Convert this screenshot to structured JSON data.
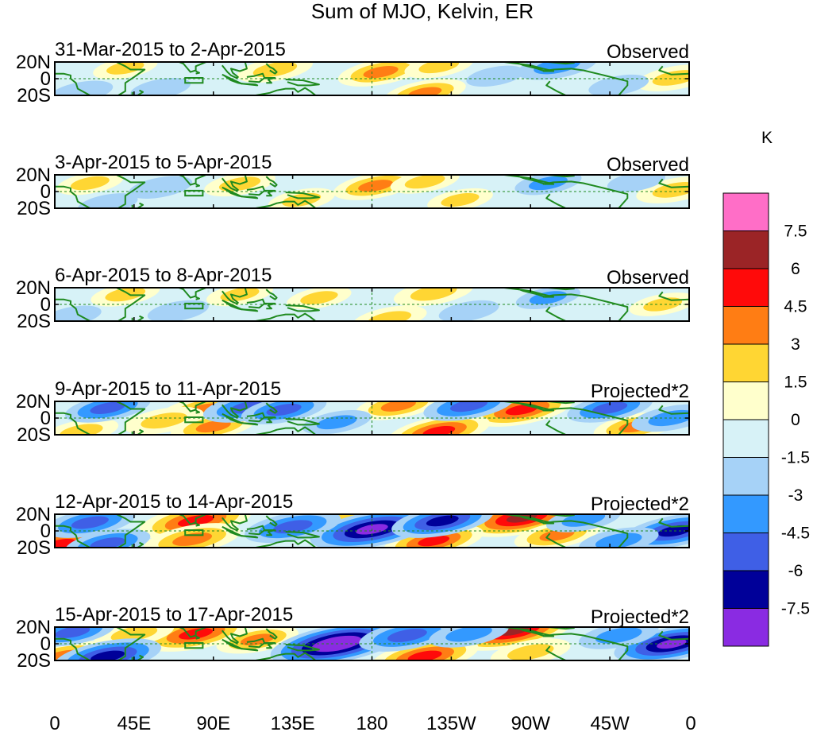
{
  "chart_data": {
    "type": "heatmap",
    "title": "Sum of MJO, Kelvin, ER",
    "units": "K",
    "lon_ticks": [
      "0",
      "45E",
      "90E",
      "135E",
      "180",
      "135W",
      "90W",
      "45W",
      "0"
    ],
    "lat_ticks": [
      "20N",
      "0",
      "20S"
    ],
    "lon_range": [
      0,
      360
    ],
    "lat_range": [
      -20,
      20
    ],
    "colorbar": {
      "label": "K",
      "levels": [
        "7.5",
        "6",
        "4.5",
        "3",
        "1.5",
        "0",
        "-1.5",
        "-3",
        "-4.5",
        "-6",
        "-7.5"
      ],
      "colors": [
        "#ff6ec7",
        "#9b2426",
        "#ff0a0a",
        "#ff7d14",
        "#ffd633",
        "#ffffcc",
        "#d7f2f7",
        "#a6d2f7",
        "#3399ff",
        "#3f5fe6",
        "#000099",
        "#8a2be2"
      ]
    },
    "panels": [
      {
        "period": "31-Mar-2015 to 2-Apr-2015",
        "kind": "Observed",
        "anomalies": [
          {
            "lon": 185,
            "lat": 8,
            "value": 3.5
          },
          {
            "lon": 210,
            "lat": -17,
            "value": 3.2
          },
          {
            "lon": 125,
            "lat": 11,
            "value": 2.6
          },
          {
            "lon": 352,
            "lat": 1,
            "value": 2.8
          },
          {
            "lon": 218,
            "lat": 15,
            "value": 2.0
          },
          {
            "lon": 285,
            "lat": 15,
            "value": -3.0
          },
          {
            "lon": 60,
            "lat": -12,
            "value": -1.2
          },
          {
            "lon": 15,
            "lat": -16,
            "value": -1.5
          },
          {
            "lon": 320,
            "lat": -8,
            "value": -1.2
          },
          {
            "lon": 40,
            "lat": 13,
            "value": 1.6
          },
          {
            "lon": 250,
            "lat": 3,
            "value": -1.0
          }
        ]
      },
      {
        "period": "3-Apr-2015 to 5-Apr-2015",
        "kind": "Observed",
        "anomalies": [
          {
            "lon": 182,
            "lat": 7,
            "value": 3.4
          },
          {
            "lon": 140,
            "lat": -10,
            "value": 1.8
          },
          {
            "lon": 352,
            "lat": 2,
            "value": 2.8
          },
          {
            "lon": 210,
            "lat": 12,
            "value": 2.0
          },
          {
            "lon": 105,
            "lat": 9,
            "value": 2.2
          },
          {
            "lon": 230,
            "lat": -10,
            "value": 1.7
          },
          {
            "lon": 20,
            "lat": 10,
            "value": 1.8
          },
          {
            "lon": 280,
            "lat": 10,
            "value": -1.8
          },
          {
            "lon": 60,
            "lat": 5,
            "value": -1.5
          },
          {
            "lon": 30,
            "lat": -15,
            "value": -1.2
          },
          {
            "lon": 330,
            "lat": 12,
            "value": -1.0
          }
        ]
      },
      {
        "period": "6-Apr-2015 to 8-Apr-2015",
        "kind": "Observed",
        "anomalies": [
          {
            "lon": 215,
            "lat": 14,
            "value": 3.0
          },
          {
            "lon": 190,
            "lat": -17,
            "value": 2.5
          },
          {
            "lon": 40,
            "lat": 12,
            "value": 2.0
          },
          {
            "lon": 345,
            "lat": 0,
            "value": 1.8
          },
          {
            "lon": 105,
            "lat": 12,
            "value": 1.8
          },
          {
            "lon": 150,
            "lat": 8,
            "value": 1.6
          },
          {
            "lon": 280,
            "lat": 8,
            "value": -1.6
          },
          {
            "lon": 70,
            "lat": -8,
            "value": -1.3
          },
          {
            "lon": 235,
            "lat": -8,
            "value": -1.2
          },
          {
            "lon": 10,
            "lat": -14,
            "value": -1.0
          }
        ]
      },
      {
        "period": "9-Apr-2015 to 11-Apr-2015",
        "kind": "Projected*2",
        "anomalies": [
          {
            "lon": 265,
            "lat": 10,
            "value": 5.0
          },
          {
            "lon": 218,
            "lat": -16,
            "value": 5.0
          },
          {
            "lon": 85,
            "lat": 10,
            "value": 4.0
          },
          {
            "lon": 62,
            "lat": -3,
            "value": 3.0
          },
          {
            "lon": 90,
            "lat": -10,
            "value": 3.5
          },
          {
            "lon": 195,
            "lat": 15,
            "value": 3.5
          },
          {
            "lon": 330,
            "lat": -10,
            "value": 3.5
          },
          {
            "lon": 15,
            "lat": -16,
            "value": 2.5
          },
          {
            "lon": 110,
            "lat": 13,
            "value": -4.0
          },
          {
            "lon": 130,
            "lat": 10,
            "value": -3.5
          },
          {
            "lon": 235,
            "lat": 15,
            "value": -4.0
          },
          {
            "lon": 30,
            "lat": 12,
            "value": -3.5
          },
          {
            "lon": 315,
            "lat": 12,
            "value": -3.5
          },
          {
            "lon": 350,
            "lat": 0,
            "value": -3.0
          },
          {
            "lon": 160,
            "lat": -5,
            "value": -2.0
          }
        ]
      },
      {
        "period": "12-Apr-2015 to 14-Apr-2015",
        "kind": "Projected*2",
        "anomalies": [
          {
            "lon": 265,
            "lat": 16,
            "value": 6.5
          },
          {
            "lon": 80,
            "lat": 12,
            "value": 6.0
          },
          {
            "lon": 215,
            "lat": -12,
            "value": 4.8
          },
          {
            "lon": 78,
            "lat": -10,
            "value": 4.5
          },
          {
            "lon": 3,
            "lat": -16,
            "value": 5.0
          },
          {
            "lon": 160,
            "lat": 12,
            "value": 3.0
          },
          {
            "lon": 285,
            "lat": -5,
            "value": 3.5
          },
          {
            "lon": 180,
            "lat": 2,
            "value": -7.0
          },
          {
            "lon": 220,
            "lat": 12,
            "value": -5.0
          },
          {
            "lon": 135,
            "lat": 5,
            "value": -4.5
          },
          {
            "lon": 20,
            "lat": 10,
            "value": -4.0
          },
          {
            "lon": 352,
            "lat": 0,
            "value": -5.5
          },
          {
            "lon": 30,
            "lat": -15,
            "value": -3.5
          },
          {
            "lon": 320,
            "lat": -12,
            "value": -3.0
          },
          {
            "lon": 300,
            "lat": 14,
            "value": -2.5
          }
        ]
      },
      {
        "period": "15-Apr-2015 to 17-Apr-2015",
        "kind": "Projected*2",
        "anomalies": [
          {
            "lon": 260,
            "lat": 16,
            "value": 7.0
          },
          {
            "lon": 80,
            "lat": 12,
            "value": 5.5
          },
          {
            "lon": 210,
            "lat": -15,
            "value": 5.5
          },
          {
            "lon": 115,
            "lat": 5,
            "value": 3.2
          },
          {
            "lon": 5,
            "lat": -15,
            "value": 4.0
          },
          {
            "lon": 270,
            "lat": -10,
            "value": 3.0
          },
          {
            "lon": 45,
            "lat": 12,
            "value": 3.0
          },
          {
            "lon": 160,
            "lat": 0,
            "value": -7.8
          },
          {
            "lon": 200,
            "lat": 10,
            "value": -4.5
          },
          {
            "lon": 350,
            "lat": 0,
            "value": -6.2
          },
          {
            "lon": 30,
            "lat": -15,
            "value": -5.5
          },
          {
            "lon": 10,
            "lat": 14,
            "value": -3.5
          },
          {
            "lon": 235,
            "lat": 12,
            "value": -3.0
          },
          {
            "lon": 320,
            "lat": 10,
            "value": -3.0
          }
        ]
      }
    ]
  }
}
